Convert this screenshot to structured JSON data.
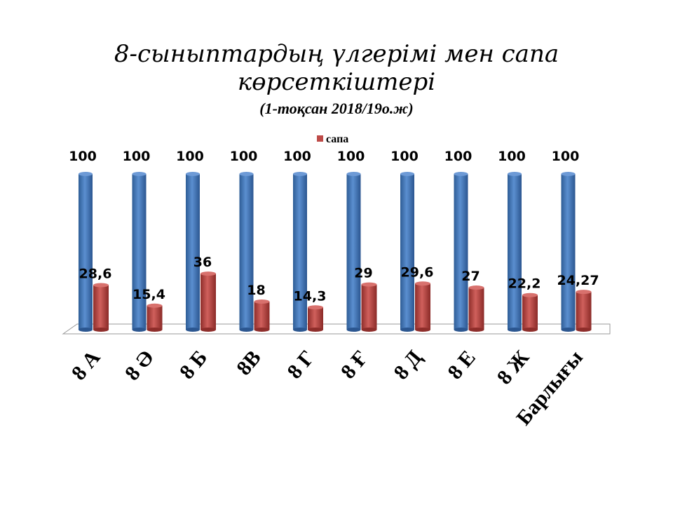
{
  "chart_data": {
    "type": "bar",
    "title": "8-сыныптардың үлгерімі мен сапа көрсеткіштері",
    "subtitle": "(1-тоқсан 2018/19о.ж)",
    "categories": [
      "8 А",
      "8 Ә",
      "8 Б",
      "8В",
      "8 Г",
      "8 Ғ",
      "8 Д",
      "8 Е",
      "8 Ж",
      "Барлығы"
    ],
    "series": [
      {
        "values": [
          100,
          100,
          100,
          100,
          100,
          100,
          100,
          100,
          100,
          100
        ],
        "color": "#4a7ebb"
      },
      {
        "name": "сапа",
        "values": [
          "28,6",
          "15,4",
          "36",
          "18",
          "14,3",
          "29",
          "29,6",
          "27",
          "22,2",
          "24,27"
        ],
        "color": "#be4b48"
      }
    ],
    "ylim": [
      0,
      100
    ],
    "grid": false,
    "legend": "top",
    "style": "3d-cylinder"
  }
}
